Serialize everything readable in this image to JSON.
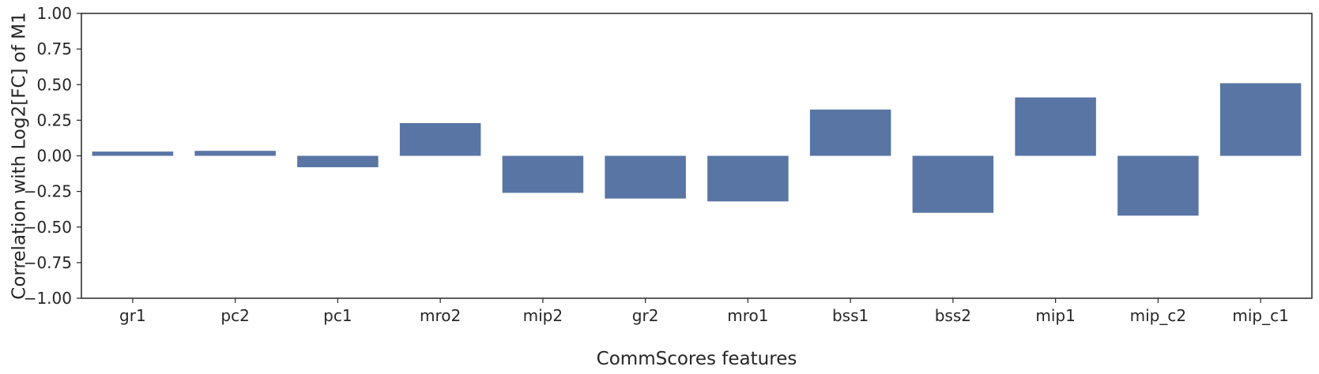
{
  "chart_data": {
    "type": "bar",
    "title": "",
    "xlabel": "CommScores features",
    "ylabel": "Correlation with Log2[FC] of M1",
    "ylim": [
      -1.0,
      1.0
    ],
    "yticks": [
      1.0,
      0.75,
      0.5,
      0.25,
      0.0,
      -0.25,
      -0.5,
      -0.75,
      -1.0
    ],
    "ytick_labels": [
      "1.00",
      "0.75",
      "0.50",
      "0.25",
      "0.00",
      "−0.25",
      "−0.50",
      "−0.75",
      "−1.00"
    ],
    "categories": [
      "gr1",
      "pc2",
      "pc1",
      "mro2",
      "mip2",
      "gr2",
      "mro1",
      "bss1",
      "bss2",
      "mip1",
      "mip_c2",
      "mip_c1"
    ],
    "values": [
      0.03,
      0.035,
      -0.08,
      0.23,
      -0.26,
      -0.3,
      -0.32,
      0.325,
      -0.4,
      0.41,
      -0.42,
      0.51
    ],
    "grid": false,
    "bar_color": "#5875a4"
  }
}
